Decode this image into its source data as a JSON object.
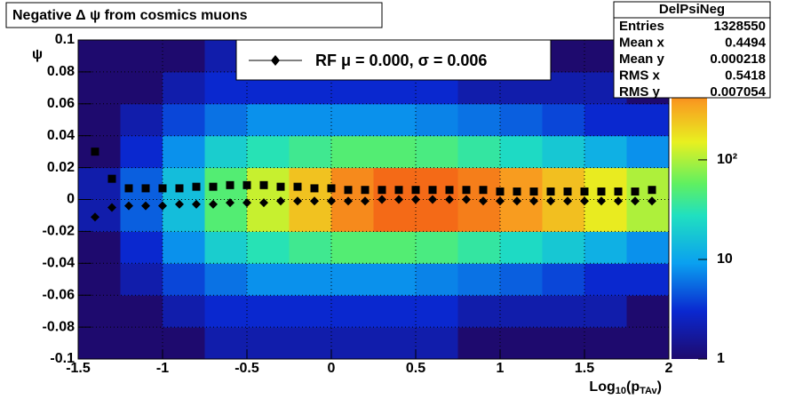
{
  "chart_data": {
    "type": "heatmap",
    "title": "Negative Δ ψ from cosmics muons",
    "x_label": [
      "Log",
      "10",
      "(p",
      "TAv",
      ")"
    ],
    "y_label": "ψ",
    "xlim": [
      -1.5,
      2
    ],
    "xticks": [
      -1.5,
      -1,
      -0.5,
      0,
      0.5,
      1,
      1.5,
      2
    ],
    "ylim": [
      -0.1,
      0.1
    ],
    "yticks": [
      -0.1,
      -0.08,
      -0.06,
      -0.04,
      -0.02,
      0,
      0.02,
      0.04,
      0.06,
      0.08,
      0.1
    ],
    "grid": true,
    "log_z": true,
    "zlim": [
      1,
      1600
    ],
    "zticks": [
      1,
      10,
      {
        "value": 100,
        "label": "10²"
      }
    ],
    "xbins": [
      -1.5,
      -1.25,
      -1,
      -0.75,
      -0.5,
      -0.25,
      0,
      0.25,
      0.5,
      0.75,
      1,
      1.25,
      1.5,
      1.75,
      2
    ],
    "ybins": [
      -0.1,
      -0.08,
      -0.06,
      -0.04,
      -0.02,
      0,
      0.02,
      0.04,
      0.06,
      0.08,
      0.1
    ],
    "counts": [
      [
        1,
        1,
        1,
        2,
        2,
        2,
        2,
        2,
        2,
        1,
        1,
        1,
        1,
        1
      ],
      [
        1,
        1,
        2,
        3,
        3,
        3,
        3,
        3,
        3,
        2,
        2,
        2,
        2,
        1
      ],
      [
        1,
        2,
        4,
        6,
        8,
        8,
        8,
        8,
        7,
        6,
        5,
        4,
        3,
        3
      ],
      [
        1,
        3,
        8,
        20,
        30,
        40,
        50,
        50,
        45,
        35,
        25,
        18,
        12,
        8
      ],
      [
        2,
        5,
        15,
        50,
        120,
        250,
        450,
        600,
        600,
        500,
        380,
        260,
        160,
        100
      ],
      [
        2,
        5,
        15,
        50,
        120,
        250,
        450,
        600,
        600,
        500,
        380,
        260,
        160,
        100
      ],
      [
        1,
        3,
        8,
        20,
        30,
        40,
        50,
        50,
        45,
        35,
        25,
        18,
        12,
        8
      ],
      [
        1,
        2,
        4,
        6,
        8,
        8,
        8,
        8,
        7,
        6,
        5,
        4,
        3,
        3
      ],
      [
        1,
        1,
        2,
        3,
        3,
        3,
        3,
        3,
        3,
        2,
        2,
        2,
        2,
        1
      ],
      [
        1,
        1,
        1,
        2,
        2,
        2,
        2,
        2,
        2,
        1,
        1,
        1,
        1,
        1
      ]
    ],
    "series": [
      {
        "marker": "square",
        "color": "#000000",
        "x": [
          -1.4,
          -1.3,
          -1.2,
          -1.1,
          -1,
          -0.9,
          -0.8,
          -0.7,
          -0.6,
          -0.5,
          -0.4,
          -0.3,
          -0.2,
          -0.1,
          0,
          0.1,
          0.2,
          0.3,
          0.4,
          0.5,
          0.6,
          0.7,
          0.8,
          0.9,
          1,
          1.1,
          1.2,
          1.3,
          1.4,
          1.5,
          1.6,
          1.7,
          1.8,
          1.9
        ],
        "values": [
          0.03,
          0.013,
          0.007,
          0.007,
          0.007,
          0.007,
          0.008,
          0.008,
          0.009,
          0.009,
          0.009,
          0.008,
          0.008,
          0.007,
          0.007,
          0.006,
          0.006,
          0.006,
          0.006,
          0.006,
          0.006,
          0.006,
          0.006,
          0.006,
          0.005,
          0.005,
          0.005,
          0.005,
          0.005,
          0.005,
          0.005,
          0.005,
          0.005,
          0.006
        ]
      },
      {
        "name": "RF μ =  0.000, σ =   0.006",
        "marker": "diamond",
        "color": "#000000",
        "x": [
          -1.4,
          -1.3,
          -1.2,
          -1.1,
          -1,
          -0.9,
          -0.8,
          -0.7,
          -0.6,
          -0.5,
          -0.4,
          -0.3,
          -0.2,
          -0.1,
          0,
          0.1,
          0.2,
          0.3,
          0.4,
          0.5,
          0.6,
          0.7,
          0.8,
          0.9,
          1,
          1.1,
          1.2,
          1.3,
          1.4,
          1.5,
          1.6,
          1.7,
          1.8,
          1.9
        ],
        "values": [
          -0.011,
          -0.005,
          -0.004,
          -0.004,
          -0.004,
          -0.003,
          -0.003,
          -0.003,
          -0.002,
          -0.002,
          -0.002,
          -0.001,
          -0.001,
          -0.001,
          -0.001,
          -0.001,
          -0.001,
          0,
          0,
          0,
          0,
          0,
          0,
          -0.001,
          -0.001,
          -0.001,
          -0.001,
          -0.001,
          -0.001,
          -0.001,
          -0.001,
          -0.001,
          -0.001,
          -0.001
        ]
      }
    ],
    "stats": {
      "title": "DelPsiNeg",
      "rows": [
        [
          "Entries",
          1328550
        ],
        [
          "Mean x",
          0.4494
        ],
        [
          "Mean y",
          0.000218
        ],
        [
          "RMS x",
          0.5418
        ],
        [
          "RMS y",
          0.007054
        ]
      ]
    }
  }
}
